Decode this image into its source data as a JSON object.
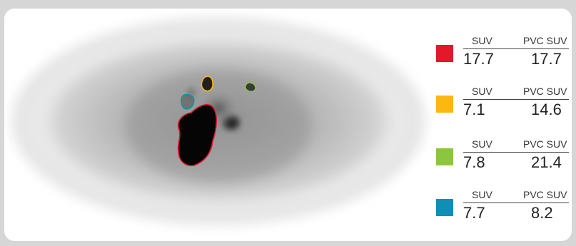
{
  "legend": {
    "entries": [
      {
        "color": "#e3182a",
        "suv_header": "SUV",
        "pvc_header": "PVC SUV",
        "suv": "17.7",
        "pvc": "17.7"
      },
      {
        "color": "#fbb80f",
        "suv_header": "SUV",
        "pvc_header": "PVC SUV",
        "suv": "7.1",
        "pvc": "14.6"
      },
      {
        "color": "#8cc63e",
        "suv_header": "SUV",
        "pvc_header": "PVC SUV",
        "suv": "7.8",
        "pvc": "21.4"
      },
      {
        "color": "#0e8fb4",
        "suv_header": "SUV",
        "pvc_header": "PVC SUV",
        "suv": "7.7",
        "pvc": "8.2"
      }
    ]
  },
  "scan": {
    "contour_colors": {
      "red": "#e3182a",
      "yellow": "#fbb80f",
      "green": "#8cc63e",
      "cyan": "#0e8fb4"
    }
  }
}
